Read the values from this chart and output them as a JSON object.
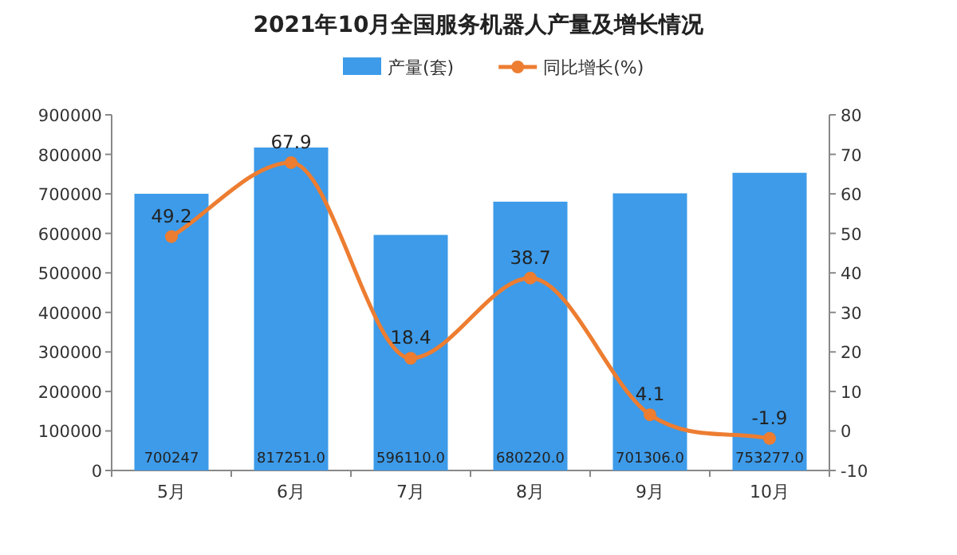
{
  "chart_data": {
    "type": "bar",
    "title": "2021年10月全国服务机器人产量及增长情况",
    "categories": [
      "5月",
      "6月",
      "7月",
      "8月",
      "9月",
      "10月"
    ],
    "series": [
      {
        "name": "产量(套)",
        "color": "#3d9be9",
        "values": [
          700247,
          817251.0,
          596110.0,
          680220.0,
          701306.0,
          753277.0
        ],
        "value_labels": [
          "700247",
          "817251.0",
          "596110.0",
          "680220.0",
          "701306.0",
          "753277.0"
        ]
      },
      {
        "name": "同比增长(%)",
        "type": "line",
        "axis": "y2",
        "color": "#ed7d31",
        "marker": "circle",
        "values": [
          49.2,
          67.9,
          18.4,
          38.7,
          4.1,
          -1.9
        ],
        "value_labels": [
          "49.2",
          "67.9",
          "18.4",
          "38.7",
          "4.1",
          "-1.9"
        ]
      }
    ],
    "ylim": [
      0,
      900000
    ],
    "yticks": [
      0,
      100000,
      200000,
      300000,
      400000,
      500000,
      600000,
      700000,
      800000,
      900000
    ],
    "y2lim": [
      -10,
      80
    ],
    "y2ticks": [
      -10,
      0,
      10,
      20,
      30,
      40,
      50,
      60,
      70,
      80
    ],
    "legend": "top"
  }
}
